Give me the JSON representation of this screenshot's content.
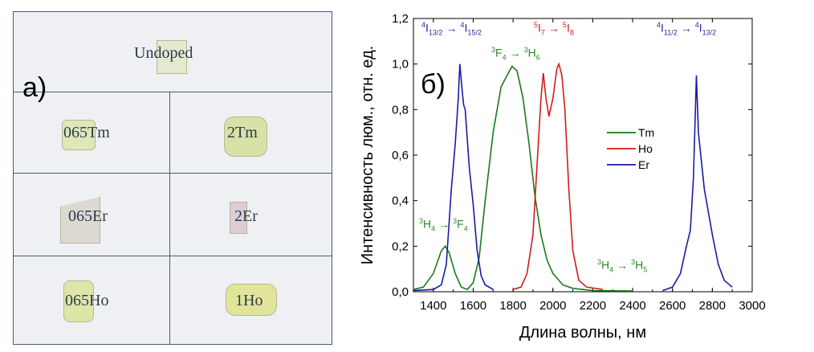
{
  "photo": {
    "label": "a)",
    "samples": [
      "Undoped",
      "065Tm",
      "2Tm",
      "065Er",
      "2Er",
      "065Ho",
      "1Ho"
    ]
  },
  "chart_data": {
    "type": "line",
    "panel_label": "б)",
    "xlabel": "Длина волны, нм",
    "ylabel": "Интенсивность люм., отн. ед.",
    "xlim": [
      1300,
      3000
    ],
    "ylim": [
      0,
      1.2
    ],
    "xticks": [
      "1400",
      "1600",
      "1800",
      "2000",
      "2200",
      "2400",
      "2600",
      "2800",
      "3000"
    ],
    "yticks": [
      "0,0",
      "0,2",
      "0,4",
      "0,6",
      "0,8",
      "1,0",
      "1,2"
    ],
    "legend_position": "center-right",
    "series": [
      {
        "name": "Tm",
        "color": "#1a7a1a",
        "x": [
          1300,
          1350,
          1400,
          1440,
          1460,
          1480,
          1510,
          1540,
          1570,
          1600,
          1630,
          1660,
          1700,
          1740,
          1770,
          1795,
          1820,
          1850,
          1880,
          1910,
          1940,
          1970,
          2000,
          2050,
          2100,
          2200,
          2400
        ],
        "y": [
          0.01,
          0.02,
          0.08,
          0.18,
          0.2,
          0.17,
          0.08,
          0.02,
          0.01,
          0.04,
          0.15,
          0.4,
          0.7,
          0.9,
          0.95,
          0.99,
          0.97,
          0.85,
          0.65,
          0.42,
          0.25,
          0.14,
          0.08,
          0.03,
          0.015,
          0.005,
          0.003
        ]
      },
      {
        "name": "Ho",
        "color": "#d41a1a",
        "x": [
          1800,
          1840,
          1870,
          1900,
          1920,
          1940,
          1952,
          1965,
          1980,
          2000,
          2020,
          2030,
          2045,
          2060,
          2080,
          2100,
          2130,
          2170,
          2250
        ],
        "y": [
          0.01,
          0.02,
          0.08,
          0.25,
          0.55,
          0.85,
          0.96,
          0.85,
          0.77,
          0.85,
          0.98,
          1.0,
          0.95,
          0.8,
          0.45,
          0.18,
          0.05,
          0.02,
          0.01
        ]
      },
      {
        "name": "Er",
        "color": "#1a1aa8",
        "x": [
          1300,
          1400,
          1440,
          1465,
          1490,
          1510,
          1525,
          1533,
          1545,
          1552,
          1560,
          1580,
          1600,
          1620,
          1640,
          1660,
          1700,
          null,
          2550,
          2600,
          2640,
          2670,
          2690,
          2705,
          2720,
          2730,
          2760,
          2800,
          2830,
          2860,
          2900
        ],
        "y": [
          0.005,
          0.01,
          0.03,
          0.12,
          0.45,
          0.65,
          0.85,
          1.0,
          0.88,
          0.82,
          0.8,
          0.55,
          0.38,
          0.18,
          0.07,
          0.03,
          0.01,
          null,
          0.005,
          0.02,
          0.08,
          0.2,
          0.27,
          0.5,
          0.95,
          0.7,
          0.45,
          0.25,
          0.12,
          0.05,
          0.02
        ]
      }
    ],
    "annotations": [
      {
        "id": "er1",
        "color": "#2a2aa0",
        "base1": "I",
        "sup1": "4",
        "sub1": "13/2",
        "base2": "I",
        "sup2": "4",
        "sub2": "15/2"
      },
      {
        "id": "ho",
        "color": "#c82020",
        "base1": "I",
        "sup1": "5",
        "sub1": "7",
        "base2": "I",
        "sup2": "5",
        "sub2": "8"
      },
      {
        "id": "er2",
        "color": "#2a2aa0",
        "base1": "I",
        "sup1": "4",
        "sub1": "11/2",
        "base2": "I",
        "sup2": "4",
        "sub2": "13/2"
      },
      {
        "id": "tm1",
        "color": "#2a8a2a",
        "base1": "F",
        "sup1": "3",
        "sub1": "4",
        "base2": "H",
        "sup2": "3",
        "sub2": "6"
      },
      {
        "id": "tm2",
        "color": "#2a8a2a",
        "base1": "H",
        "sup1": "3",
        "sub1": "4",
        "base2": "F",
        "sup2": "3",
        "sub2": "4"
      },
      {
        "id": "tm3",
        "color": "#2a8a2a",
        "base1": "H",
        "sup1": "3",
        "sub1": "4",
        "base2": "H",
        "sup2": "3",
        "sub2": "5"
      }
    ],
    "arrow": "→"
  }
}
